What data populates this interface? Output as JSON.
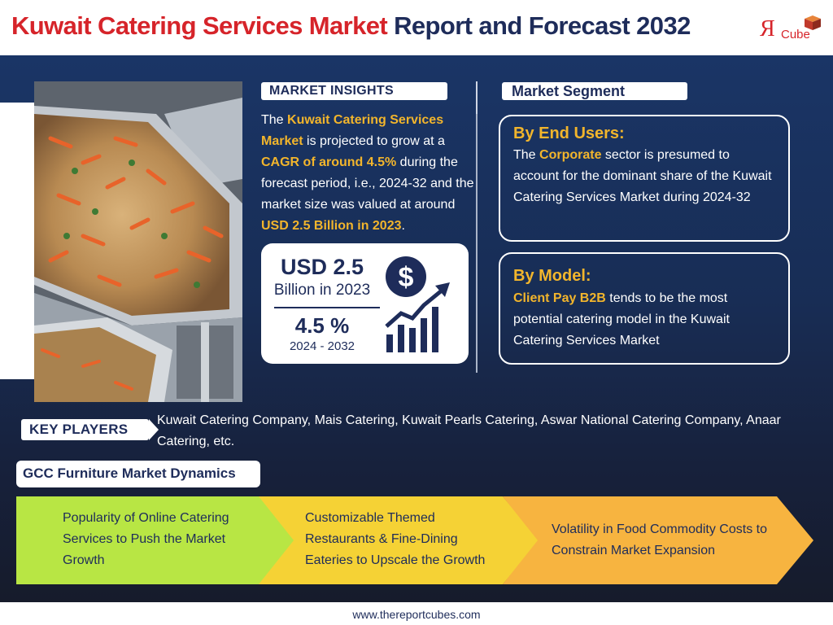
{
  "header": {
    "title_part1": "Kuwait Catering Services Market",
    "title_part2": "Report and Forecast 2032",
    "logo_letter": "Я",
    "logo_text": "Cube"
  },
  "market_insights": {
    "heading": "MARKET INSIGHTS",
    "text": [
      {
        "t": "The ",
        "hl": false
      },
      {
        "t": "Kuwait Catering Services Market",
        "hl": true
      },
      {
        "t": " is projected to grow at a ",
        "hl": false
      },
      {
        "t": "CAGR of around 4.5%",
        "hl": true
      },
      {
        "t": " during the forecast period, i.e., 2024-32 and the market size was valued at around ",
        "hl": false
      },
      {
        "t": "USD 2.5 Billion in 2023",
        "hl": true
      },
      {
        "t": ".",
        "hl": false
      }
    ]
  },
  "stats": {
    "market_size": "USD 2.5",
    "market_size_sub": "Billion in 2023",
    "cagr": "4.5 %",
    "cagr_period": "2024 - 2032"
  },
  "market_segment": {
    "heading": "Market Segment",
    "by_end_users": {
      "title": "By End Users:",
      "text": [
        {
          "t": "The ",
          "hl": false
        },
        {
          "t": "Corporate",
          "hl": true
        },
        {
          "t": " sector is presumed to account for the dominant share of the Kuwait Catering Services Market during 2024-32",
          "hl": false
        }
      ]
    },
    "by_model": {
      "title": "By Model:",
      "text": [
        {
          "t": "Client Pay B2B",
          "hl": true
        },
        {
          "t": " tends to be the most potential catering model in the Kuwait Catering Services Market",
          "hl": false
        }
      ]
    }
  },
  "key_players": {
    "heading": "KEY PLAYERS",
    "text": "Kuwait Catering Company, Mais Catering, Kuwait Pearls Catering, Aswar National Catering Company, Anaar Catering, etc."
  },
  "dynamics": {
    "heading": "GCC Furniture Market Dynamics",
    "items": [
      {
        "text": "Popularity of Online Catering Services to Push the Market Growth",
        "color": "#b8e644"
      },
      {
        "text": "Customizable Themed Restaurants & Fine-Dining Eateries to Upscale the Growth",
        "color": "#f5d235"
      },
      {
        "text": "Volatility in Food Commodity Costs to Constrain Market Expansion",
        "color": "#f7b440"
      }
    ]
  },
  "footer": {
    "website": "www.thereportcubes.com"
  },
  "colors": {
    "brand_red": "#d6242a",
    "navy": "#1e2c5a",
    "highlight": "#f2b52c"
  }
}
